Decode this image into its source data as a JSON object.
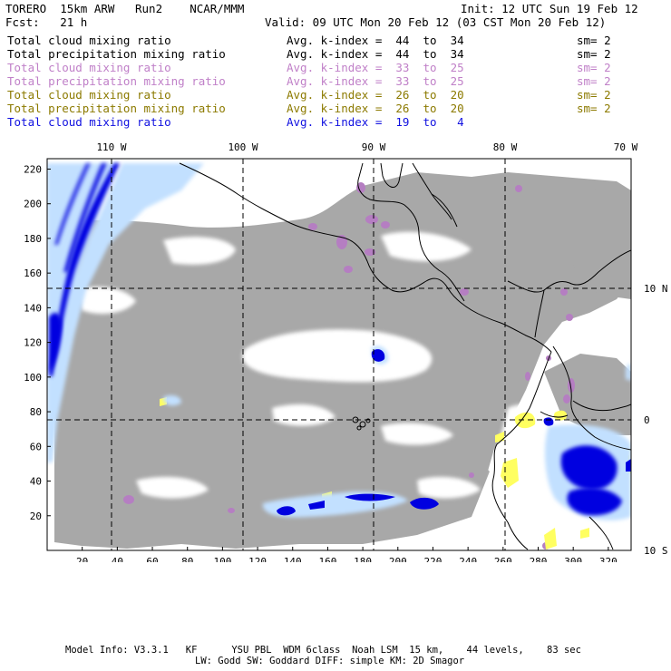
{
  "header": {
    "model_line": "TORERO  15km ARW   Run2    NCAR/MMM",
    "init": "Init: 12 UTC Sun 19 Feb 12",
    "fcst": "Fcst:   21 h",
    "valid": "Valid: 09 UTC Mon 20 Feb 12 (03 CST Mon 20 Feb 12)"
  },
  "fields": [
    {
      "name": "Total cloud mixing ratio",
      "avg": "Avg. k-index =  44  to  34",
      "sm": "sm= 2",
      "color": "#000000"
    },
    {
      "name": "Total precipitation mixing ratio",
      "avg": "Avg. k-index =  44  to  34",
      "sm": "sm= 2",
      "color": "#000000"
    },
    {
      "name": "Total cloud mixing ratio",
      "avg": "Avg. k-index =  33  to  25",
      "sm": "sm= 2",
      "color": "#c080c8"
    },
    {
      "name": "Total precipitation mixing ratio",
      "avg": "Avg. k-index =  33  to  25",
      "sm": "sm= 2",
      "color": "#c080c8"
    },
    {
      "name": "Total cloud mixing ratio",
      "avg": "Avg. k-index =  26  to  20",
      "sm": "sm= 2",
      "color": "#8c7a00"
    },
    {
      "name": "Total precipitation mixing ratio",
      "avg": "Avg. k-index =  26  to  20",
      "sm": "sm= 2",
      "color": "#8c7a00"
    },
    {
      "name": "Total cloud mixing ratio",
      "avg": "Avg. k-index =  19  to   4",
      "sm": "",
      "color": "#1010e0"
    }
  ],
  "map": {
    "lon_labels": [
      "110 W",
      "100 W",
      "90 W",
      "80 W",
      "70 W"
    ],
    "lat_labels": [
      "10 N",
      "0",
      "10 S"
    ],
    "x_ticks": [
      20,
      40,
      60,
      80,
      100,
      120,
      140,
      160,
      180,
      200,
      220,
      240,
      260,
      280,
      300,
      320
    ],
    "y_ticks": [
      20,
      40,
      60,
      80,
      100,
      120,
      140,
      160,
      180,
      200,
      220
    ],
    "colors": {
      "gray": "#a8a8a8",
      "purple": "#b57ec2",
      "yellow": "#ffff60",
      "light_blue": "#c2e0ff",
      "blue": "#2850f0",
      "dark_blue": "#0000e0"
    }
  },
  "footer": {
    "line1": "Model Info: V3.3.1   KF      YSU PBL  WDM 6class  Noah LSM  15 km,    44 levels,    83 sec",
    "line2": "LW: Godd SW: Goddard DIFF: simple KM: 2D Smagor"
  }
}
